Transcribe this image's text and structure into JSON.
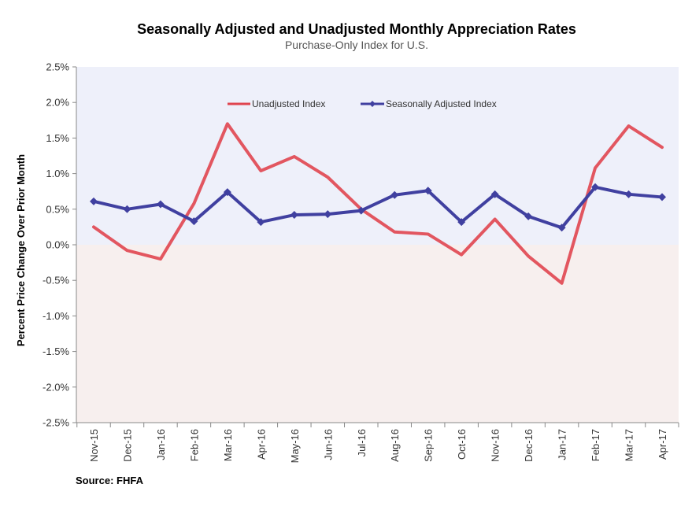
{
  "chart_data": {
    "type": "line",
    "title": "Seasonally Adjusted and Unadjusted Monthly Appreciation Rates",
    "subtitle": "Purchase-Only Index for U.S.",
    "ylabel": "Percent Price Change Over Prior Month",
    "xlabel": "",
    "source": "Source: FHFA",
    "ylim": [
      -2.5,
      2.5
    ],
    "yticks": [
      2.5,
      2.0,
      1.5,
      1.0,
      0.5,
      0.0,
      -0.5,
      -1.0,
      -1.5,
      -2.0,
      -2.5
    ],
    "ytick_labels": [
      "2.5%",
      "2.0%",
      "1.5%",
      "1.0%",
      "0.5%",
      "0.0%",
      "-0.5%",
      "-1.0%",
      "-1.5%",
      "-2.0%",
      "-2.5%"
    ],
    "categories": [
      "Nov-15",
      "Dec-15",
      "Jan-16",
      "Feb-16",
      "Mar-16",
      "Apr-16",
      "May-16",
      "Jun-16",
      "Jul-16",
      "Aug-16",
      "Sep-16",
      "Oct-16",
      "Nov-16",
      "Dec-16",
      "Jan-17",
      "Feb-17",
      "Mar-17",
      "Apr-17"
    ],
    "series": [
      {
        "name": "Unadjusted Index",
        "color": "#e0454f",
        "marker": "none",
        "values": [
          0.25,
          -0.08,
          -0.2,
          0.58,
          1.7,
          1.04,
          1.24,
          0.95,
          0.5,
          0.18,
          0.15,
          -0.14,
          0.36,
          -0.16,
          -0.54,
          1.08,
          1.67,
          1.37
        ]
      },
      {
        "name": "Seasonally Adjusted Index",
        "color": "#4040a0",
        "marker": "diamond",
        "values": [
          0.61,
          0.5,
          0.57,
          0.33,
          0.74,
          0.32,
          0.42,
          0.43,
          0.48,
          0.7,
          0.76,
          0.32,
          0.71,
          0.4,
          0.24,
          0.81,
          0.71,
          0.67
        ]
      }
    ],
    "legend_position": "top-center",
    "grid": false,
    "colors": {
      "plot_bg_positive": "#eef0fa",
      "plot_bg_negative": "#f7efee",
      "axis": "#888888"
    }
  }
}
